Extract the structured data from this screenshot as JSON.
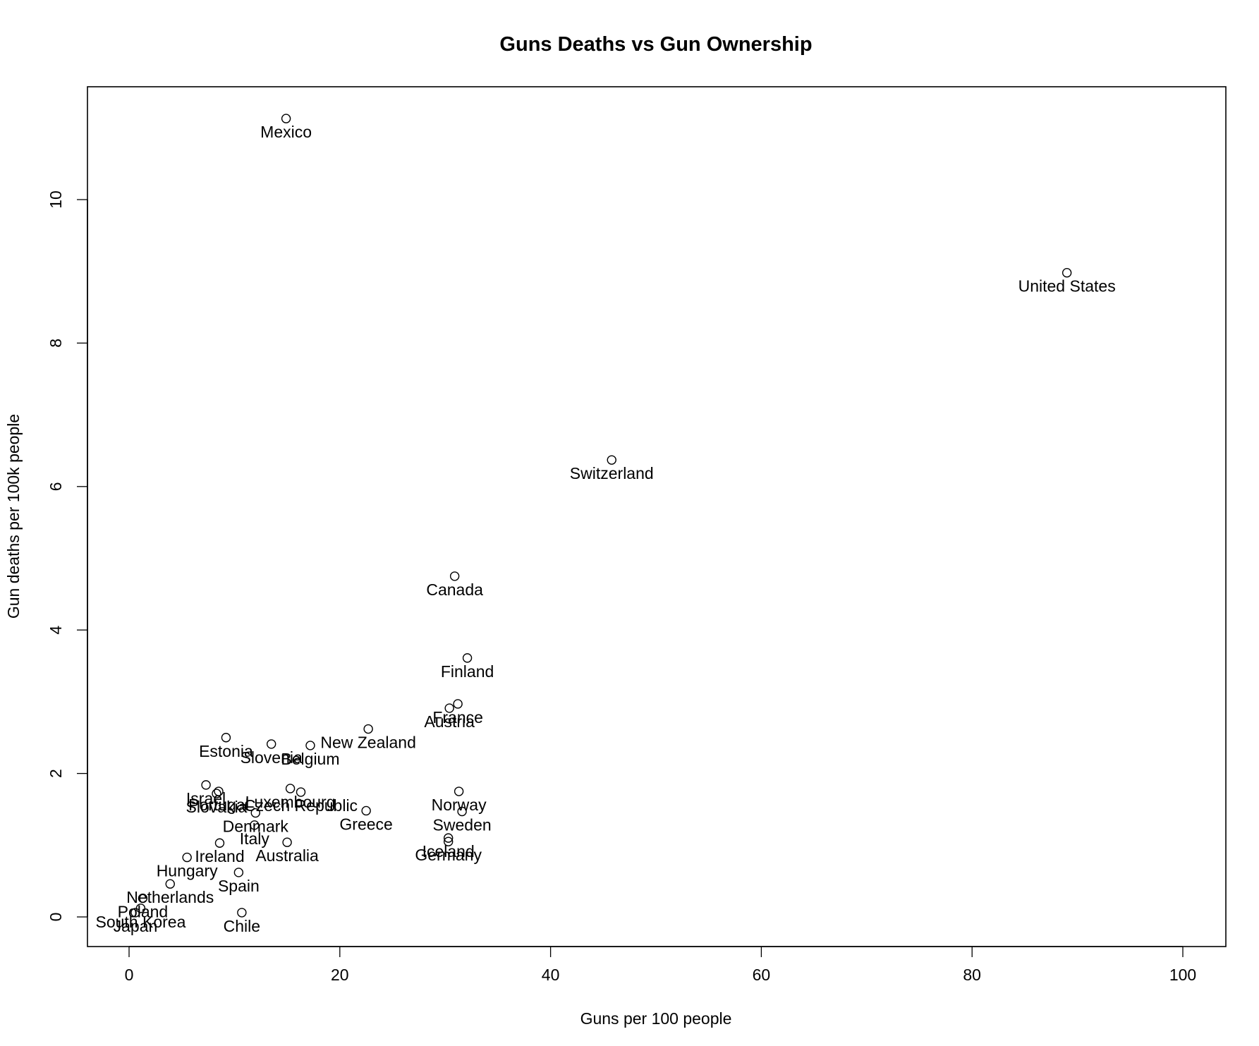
{
  "chart_data": {
    "type": "scatter",
    "title": "Guns Deaths vs Gun Ownership",
    "xlabel": "Guns per 100 people",
    "ylabel": "Gun deaths per 100k people",
    "xlim": [
      -4,
      104
    ],
    "ylim": [
      -0.4,
      11.6
    ],
    "x_ticks": [
      0,
      20,
      40,
      60,
      80,
      100
    ],
    "y_ticks": [
      0,
      2,
      4,
      6,
      8,
      10
    ],
    "grid": false,
    "legend": null,
    "marker": "open-circle",
    "label_position": "below",
    "points": [
      {
        "label": "Mexico",
        "x": 14.9,
        "y": 11.13
      },
      {
        "label": "United States",
        "x": 89.0,
        "y": 8.98
      },
      {
        "label": "Switzerland",
        "x": 45.8,
        "y": 6.37
      },
      {
        "label": "Canada",
        "x": 30.9,
        "y": 4.75
      },
      {
        "label": "Finland",
        "x": 32.1,
        "y": 3.61
      },
      {
        "label": "France",
        "x": 31.2,
        "y": 2.97
      },
      {
        "label": "Austria",
        "x": 30.4,
        "y": 2.91
      },
      {
        "label": "New Zealand",
        "x": 22.7,
        "y": 2.62
      },
      {
        "label": "Estonia",
        "x": 9.2,
        "y": 2.5
      },
      {
        "label": "Slovenia",
        "x": 13.5,
        "y": 2.41
      },
      {
        "label": "Belgium",
        "x": 17.2,
        "y": 2.39
      },
      {
        "label": "Israel",
        "x": 7.3,
        "y": 1.84
      },
      {
        "label": "Portugal",
        "x": 8.5,
        "y": 1.75
      },
      {
        "label": "Slovakia",
        "x": 8.3,
        "y": 1.72
      },
      {
        "label": "Czech Republic",
        "x": 16.3,
        "y": 1.74
      },
      {
        "label": "Luxembourg",
        "x": 15.3,
        "y": 1.79
      },
      {
        "label": "Greece",
        "x": 22.5,
        "y": 1.48
      },
      {
        "label": "Norway",
        "x": 31.3,
        "y": 1.75
      },
      {
        "label": "Sweden",
        "x": 31.6,
        "y": 1.47
      },
      {
        "label": "Denmark",
        "x": 12.0,
        "y": 1.45
      },
      {
        "label": "Italy",
        "x": 11.9,
        "y": 1.28
      },
      {
        "label": "Iceland",
        "x": 30.3,
        "y": 1.1
      },
      {
        "label": "Germany",
        "x": 30.3,
        "y": 1.05
      },
      {
        "label": "Australia",
        "x": 15.0,
        "y": 1.04
      },
      {
        "label": "Ireland",
        "x": 8.6,
        "y": 1.03
      },
      {
        "label": "Hungary",
        "x": 5.5,
        "y": 0.83
      },
      {
        "label": "Spain",
        "x": 10.4,
        "y": 0.62
      },
      {
        "label": "Netherlands",
        "x": 3.9,
        "y": 0.46
      },
      {
        "label": "Chile",
        "x": 10.7,
        "y": 0.06
      },
      {
        "label": "Poland",
        "x": 1.3,
        "y": 0.26
      },
      {
        "label": "South Korea",
        "x": 1.1,
        "y": 0.12
      },
      {
        "label": "Japan",
        "x": 0.6,
        "y": 0.06
      }
    ]
  },
  "colors": {
    "background": "#ffffff",
    "foreground": "#000000"
  }
}
